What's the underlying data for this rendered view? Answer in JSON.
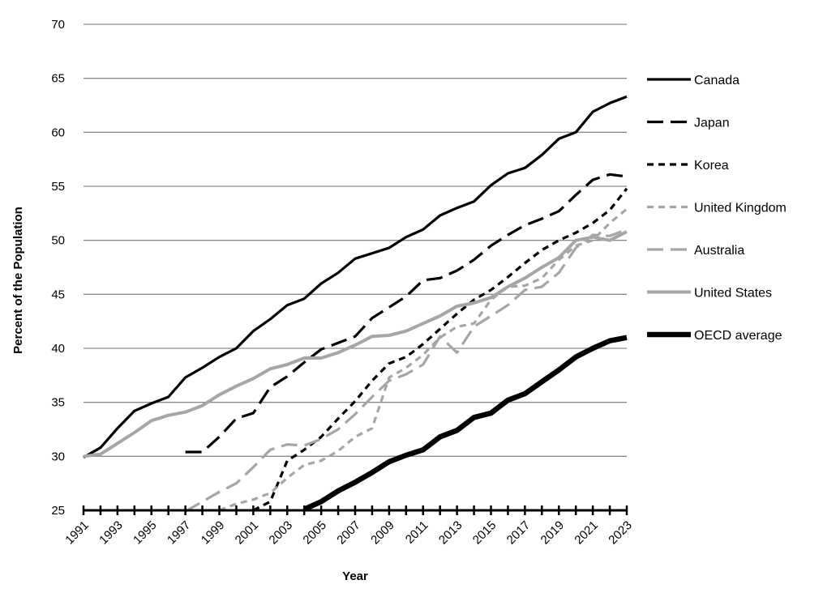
{
  "chart_data": {
    "type": "line",
    "title": "",
    "xlabel": "Year",
    "ylabel": "Percent of the Population",
    "ylim": [
      25,
      70
    ],
    "yticks": [
      25,
      30,
      35,
      40,
      45,
      50,
      55,
      60,
      65,
      70
    ],
    "xlim": [
      1991,
      2023
    ],
    "xtick_labels": [
      "1991",
      "1993",
      "1995",
      "1997",
      "1999",
      "2001",
      "2003",
      "2005",
      "2007",
      "2009",
      "2011",
      "2013",
      "2015",
      "2017",
      "2019",
      "2021",
      "2023"
    ],
    "grid": "horizontal",
    "legend": "right",
    "series": [
      {
        "name": "Canada",
        "style": "solid",
        "color": "#000000",
        "x": [
          1991,
          1992,
          1993,
          1994,
          1995,
          1996,
          1997,
          1998,
          1999,
          2000,
          2001,
          2002,
          2003,
          2004,
          2005,
          2006,
          2007,
          2008,
          2009,
          2010,
          2011,
          2012,
          2013,
          2014,
          2015,
          2016,
          2017,
          2018,
          2019,
          2020,
          2021,
          2022,
          2023
        ],
        "values": [
          29.9,
          30.8,
          32.6,
          34.2,
          34.9,
          35.5,
          37.3,
          38.2,
          39.2,
          40.0,
          41.6,
          42.7,
          44.0,
          44.6,
          46.0,
          47.0,
          48.3,
          48.8,
          49.3,
          50.3,
          51.0,
          52.3,
          53.0,
          53.6,
          55.1,
          56.2,
          56.7,
          57.9,
          59.4,
          60.0,
          61.9,
          62.7,
          63.3
        ]
      },
      {
        "name": "Japan",
        "style": "longdash",
        "color": "#000000",
        "x": [
          1997,
          1998,
          1999,
          2000,
          2001,
          2002,
          2003,
          2004,
          2005,
          2006,
          2007,
          2008,
          2009,
          2010,
          2011,
          2012,
          2013,
          2014,
          2015,
          2016,
          2017,
          2018,
          2019,
          2020,
          2021,
          2022,
          2023
        ],
        "values": [
          30.4,
          30.4,
          31.8,
          33.5,
          34.0,
          36.4,
          37.4,
          38.7,
          39.9,
          40.5,
          41.1,
          42.8,
          43.8,
          44.8,
          46.3,
          46.5,
          47.2,
          48.2,
          49.5,
          50.5,
          51.4,
          52.0,
          52.7,
          54.2,
          55.6,
          56.1,
          55.9
        ]
      },
      {
        "name": "Korea",
        "style": "shortdash",
        "color": "#000000",
        "x": [
          2001,
          2002,
          2003,
          2004,
          2005,
          2006,
          2007,
          2008,
          2009,
          2010,
          2011,
          2012,
          2013,
          2014,
          2015,
          2016,
          2017,
          2018,
          2019,
          2020,
          2021,
          2022,
          2023
        ],
        "values": [
          25.0,
          25.8,
          29.6,
          30.6,
          31.8,
          33.5,
          35.1,
          37.0,
          38.6,
          39.2,
          40.4,
          41.8,
          43.2,
          44.5,
          45.4,
          46.6,
          47.9,
          49.1,
          50.0,
          50.7,
          51.6,
          52.8,
          54.8
        ]
      },
      {
        "name": "United Kingdom",
        "style": "shortdash",
        "color": "#a6a6a6",
        "x": [
          1999,
          2000,
          2001,
          2002,
          2003,
          2004,
          2005,
          2006,
          2007,
          2008,
          2009,
          2010,
          2011,
          2012,
          2013,
          2014,
          2015,
          2016,
          2017,
          2018,
          2019,
          2020,
          2021,
          2022,
          2023
        ],
        "values": [
          25.0,
          25.6,
          26.0,
          26.6,
          28.0,
          29.2,
          29.6,
          30.5,
          31.8,
          32.6,
          37.3,
          38.2,
          39.4,
          41.0,
          42.0,
          42.3,
          44.5,
          45.7,
          45.8,
          46.5,
          48.2,
          49.5,
          50.0,
          51.6,
          52.9
        ]
      },
      {
        "name": "Australia",
        "style": "longdash",
        "color": "#a6a6a6",
        "x": [
          1997,
          1998,
          1999,
          2000,
          2001,
          2002,
          2003,
          2004,
          2005,
          2006,
          2007,
          2008,
          2009,
          2010,
          2011,
          2012,
          2013,
          2014,
          2015,
          2016,
          2017,
          2018,
          2019,
          2020,
          2021,
          2022,
          2023
        ],
        "values": [
          24.9,
          25.8,
          26.7,
          27.5,
          29.0,
          30.6,
          31.1,
          31.0,
          31.6,
          32.5,
          33.9,
          35.5,
          37.0,
          37.6,
          38.5,
          41.1,
          39.6,
          42.0,
          43.0,
          44.0,
          45.4,
          45.7,
          47.0,
          49.3,
          50.5,
          50.4,
          51.0
        ]
      },
      {
        "name": "United States",
        "style": "solid",
        "color": "#a6a6a6",
        "x": [
          1991,
          1992,
          1993,
          1994,
          1995,
          1996,
          1997,
          1998,
          1999,
          2000,
          2001,
          2002,
          2003,
          2004,
          2005,
          2006,
          2007,
          2008,
          2009,
          2010,
          2011,
          2012,
          2013,
          2014,
          2015,
          2016,
          2017,
          2018,
          2019,
          2020,
          2021,
          2022,
          2023
        ],
        "values": [
          30.0,
          30.2,
          31.2,
          32.2,
          33.3,
          33.8,
          34.1,
          34.7,
          35.7,
          36.5,
          37.2,
          38.1,
          38.5,
          39.1,
          39.1,
          39.6,
          40.3,
          41.1,
          41.2,
          41.6,
          42.3,
          43.0,
          43.9,
          44.2,
          44.7,
          45.7,
          46.5,
          47.5,
          48.4,
          50.0,
          50.3,
          50.0,
          50.8
        ]
      },
      {
        "name": "OECD average",
        "style": "solid",
        "color": "#000000",
        "x": [
          2004,
          2005,
          2006,
          2007,
          2008,
          2009,
          2010,
          2011,
          2012,
          2013,
          2014,
          2015,
          2016,
          2017,
          2018,
          2019,
          2020,
          2021,
          2022,
          2023
        ],
        "values": [
          25.1,
          25.8,
          26.8,
          27.6,
          28.5,
          29.5,
          30.1,
          30.6,
          31.8,
          32.4,
          33.6,
          34.0,
          35.2,
          35.8,
          36.9,
          38.0,
          39.2,
          40.0,
          40.7,
          41.0
        ]
      }
    ]
  }
}
